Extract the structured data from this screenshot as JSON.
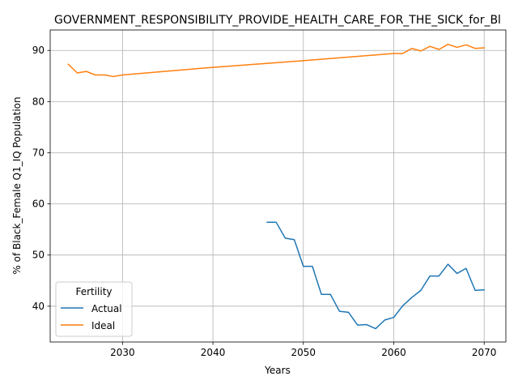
{
  "chart_data": {
    "type": "line",
    "title": "GOVERNMENT_RESPONSIBILITY_PROVIDE_HEALTH_CARE_FOR_THE_SICK_for_Bl",
    "xlabel": "Years",
    "ylabel": "% of Black_Female Q1_IQ Population",
    "xlim": [
      2022,
      2072.4
    ],
    "ylim": [
      33.0,
      94.0
    ],
    "xticks": [
      2030,
      2040,
      2050,
      2060,
      2070
    ],
    "yticks": [
      40,
      50,
      60,
      70,
      80,
      90
    ],
    "grid": true,
    "legend": {
      "title": "Fertility",
      "placement": "lower-left"
    },
    "series": [
      {
        "name": "Actual",
        "color": "#1f77b4",
        "x": [
          2046,
          2047,
          2048,
          2049,
          2050,
          2051,
          2052,
          2053,
          2054,
          2055,
          2056,
          2057,
          2058,
          2059,
          2060,
          2061,
          2062,
          2063,
          2064,
          2065,
          2066,
          2067,
          2068,
          2069,
          2070
        ],
        "y": [
          56.4,
          56.4,
          53.3,
          53.0,
          47.8,
          47.8,
          42.3,
          42.3,
          39.0,
          38.8,
          36.3,
          36.4,
          35.6,
          37.3,
          37.8,
          40.1,
          41.7,
          43.1,
          45.9,
          45.9,
          48.2,
          46.4,
          47.4,
          43.1,
          43.2
        ]
      },
      {
        "name": "Ideal",
        "color": "#ff7f0e",
        "x": [
          2024,
          2025,
          2026,
          2027,
          2028,
          2029,
          2030,
          2040,
          2050,
          2060,
          2061,
          2062,
          2063,
          2064,
          2065,
          2066,
          2067,
          2068,
          2069,
          2070
        ],
        "y": [
          87.3,
          85.6,
          85.9,
          85.2,
          85.2,
          84.9,
          85.2,
          86.7,
          88.0,
          89.4,
          89.4,
          90.4,
          89.9,
          90.8,
          90.2,
          91.2,
          90.6,
          91.1,
          90.4,
          90.5
        ]
      }
    ]
  }
}
